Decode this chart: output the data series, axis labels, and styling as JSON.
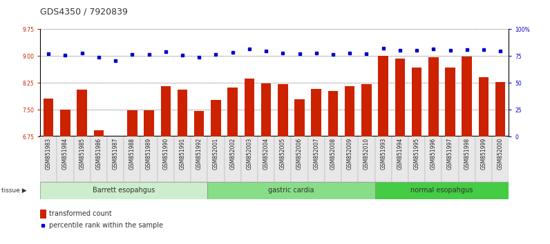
{
  "title": "GDS4350 / 7920839",
  "samples": [
    "GSM851983",
    "GSM851984",
    "GSM851985",
    "GSM851986",
    "GSM851987",
    "GSM851988",
    "GSM851989",
    "GSM851990",
    "GSM851991",
    "GSM851992",
    "GSM852001",
    "GSM852002",
    "GSM852003",
    "GSM852004",
    "GSM852005",
    "GSM852006",
    "GSM852007",
    "GSM852008",
    "GSM852009",
    "GSM852010",
    "GSM851993",
    "GSM851994",
    "GSM851995",
    "GSM851996",
    "GSM851997",
    "GSM851998",
    "GSM851999",
    "GSM852000"
  ],
  "bar_values": [
    7.81,
    7.51,
    8.06,
    6.92,
    6.63,
    7.49,
    7.49,
    8.16,
    8.06,
    7.47,
    7.78,
    8.12,
    8.38,
    8.24,
    8.22,
    7.8,
    8.08,
    8.02,
    8.16,
    8.22,
    9.0,
    8.93,
    8.68,
    8.97,
    8.68,
    8.98,
    8.41,
    8.27
  ],
  "dot_values": [
    9.07,
    9.02,
    9.08,
    8.97,
    8.88,
    9.04,
    9.05,
    9.12,
    9.02,
    8.97,
    9.05,
    9.1,
    9.21,
    9.14,
    9.08,
    9.06,
    9.08,
    9.05,
    9.08,
    9.07,
    9.22,
    9.17,
    9.17,
    9.2,
    9.17,
    9.18,
    9.19,
    9.15
  ],
  "groups": [
    {
      "label": "Barrett esopahgus",
      "start": 0,
      "end": 10,
      "color": "#cceecc"
    },
    {
      "label": "gastric cardia",
      "start": 10,
      "end": 20,
      "color": "#88dd88"
    },
    {
      "label": "normal esopahgus",
      "start": 20,
      "end": 28,
      "color": "#44cc44"
    }
  ],
  "ylim_left": [
    6.75,
    9.75
  ],
  "yticks_left": [
    6.75,
    7.5,
    8.25,
    9.0,
    9.75
  ],
  "ylim_right": [
    0,
    100
  ],
  "yticks_right": [
    0,
    25,
    50,
    75,
    100
  ],
  "bar_color": "#cc2200",
  "dot_color": "#0000cc",
  "title_fontsize": 9,
  "tick_fontsize": 5.5,
  "group_fontsize": 7,
  "legend_fontsize": 7,
  "legend_items": [
    "transformed count",
    "percentile rank within the sample"
  ]
}
